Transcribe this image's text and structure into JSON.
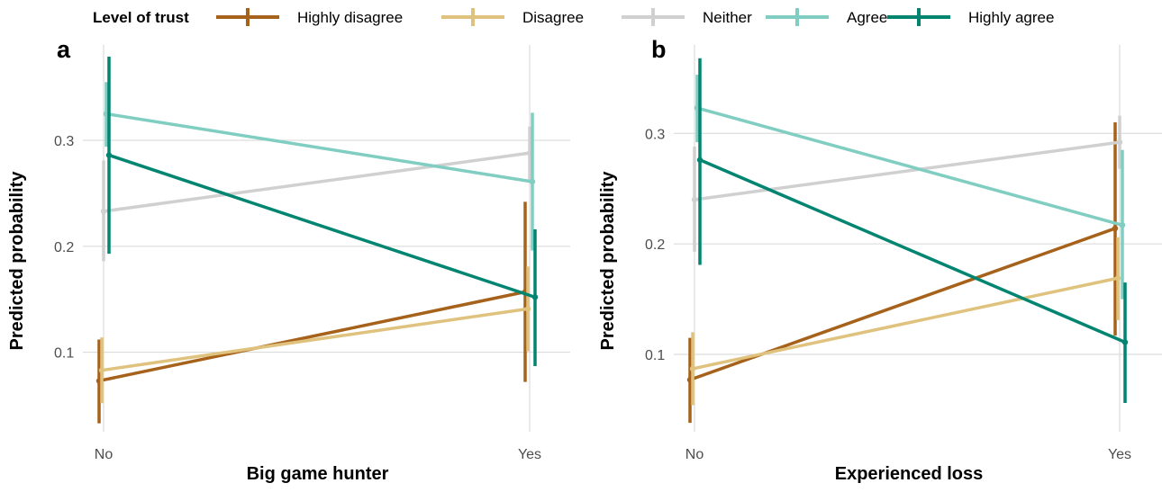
{
  "legend": {
    "title": "Level of trust",
    "items": [
      {
        "label": "Highly disagree",
        "color": "#A6611A"
      },
      {
        "label": "Disagree",
        "color": "#DFC27D"
      },
      {
        "label": "Neither",
        "color": "#D0D0D0"
      },
      {
        "label": "Agree",
        "color": "#80CDC1"
      },
      {
        "label": "Highly agree",
        "color": "#018571"
      }
    ]
  },
  "chart_data": [
    {
      "type": "line",
      "panel_label": "a",
      "xlabel": "Big game hunter",
      "ylabel": "Predicted probability",
      "categories": [
        "No",
        "Yes"
      ],
      "y_ticks": [
        0.1,
        0.2,
        0.3
      ],
      "ylim": [
        0.025,
        0.39
      ],
      "grid": true,
      "series": [
        {
          "name": "Highly disagree",
          "values": [
            0.073,
            0.157
          ],
          "lower": [
            0.033,
            0.072
          ],
          "upper": [
            0.112,
            0.242
          ]
        },
        {
          "name": "Disagree",
          "values": [
            0.083,
            0.141
          ],
          "lower": [
            0.052,
            0.101
          ],
          "upper": [
            0.114,
            0.181
          ]
        },
        {
          "name": "Neither",
          "values": [
            0.233,
            0.288
          ],
          "lower": [
            0.186,
            0.261
          ],
          "upper": [
            0.281,
            0.313
          ]
        },
        {
          "name": "Agree",
          "values": [
            0.325,
            0.261
          ],
          "lower": [
            0.294,
            0.196
          ],
          "upper": [
            0.355,
            0.326
          ]
        },
        {
          "name": "Highly agree",
          "values": [
            0.286,
            0.152
          ],
          "lower": [
            0.193,
            0.087
          ],
          "upper": [
            0.379,
            0.216
          ]
        }
      ]
    },
    {
      "type": "line",
      "panel_label": "b",
      "xlabel": "Experienced loss",
      "ylabel": "Predicted probability",
      "categories": [
        "No",
        "Yes"
      ],
      "y_ticks": [
        0.1,
        0.2,
        0.3
      ],
      "ylim": [
        0.03,
        0.38
      ],
      "grid": true,
      "series": [
        {
          "name": "Highly disagree",
          "values": [
            0.077,
            0.214
          ],
          "lower": [
            0.038,
            0.117
          ],
          "upper": [
            0.115,
            0.31
          ]
        },
        {
          "name": "Disagree",
          "values": [
            0.087,
            0.169
          ],
          "lower": [
            0.054,
            0.131
          ],
          "upper": [
            0.12,
            0.206
          ]
        },
        {
          "name": "Neither",
          "values": [
            0.24,
            0.292
          ],
          "lower": [
            0.193,
            0.268
          ],
          "upper": [
            0.288,
            0.316
          ]
        },
        {
          "name": "Agree",
          "values": [
            0.323,
            0.217
          ],
          "lower": [
            0.292,
            0.15
          ],
          "upper": [
            0.353,
            0.285
          ]
        },
        {
          "name": "Highly agree",
          "values": [
            0.276,
            0.111
          ],
          "lower": [
            0.181,
            0.056
          ],
          "upper": [
            0.368,
            0.165
          ]
        }
      ]
    }
  ]
}
